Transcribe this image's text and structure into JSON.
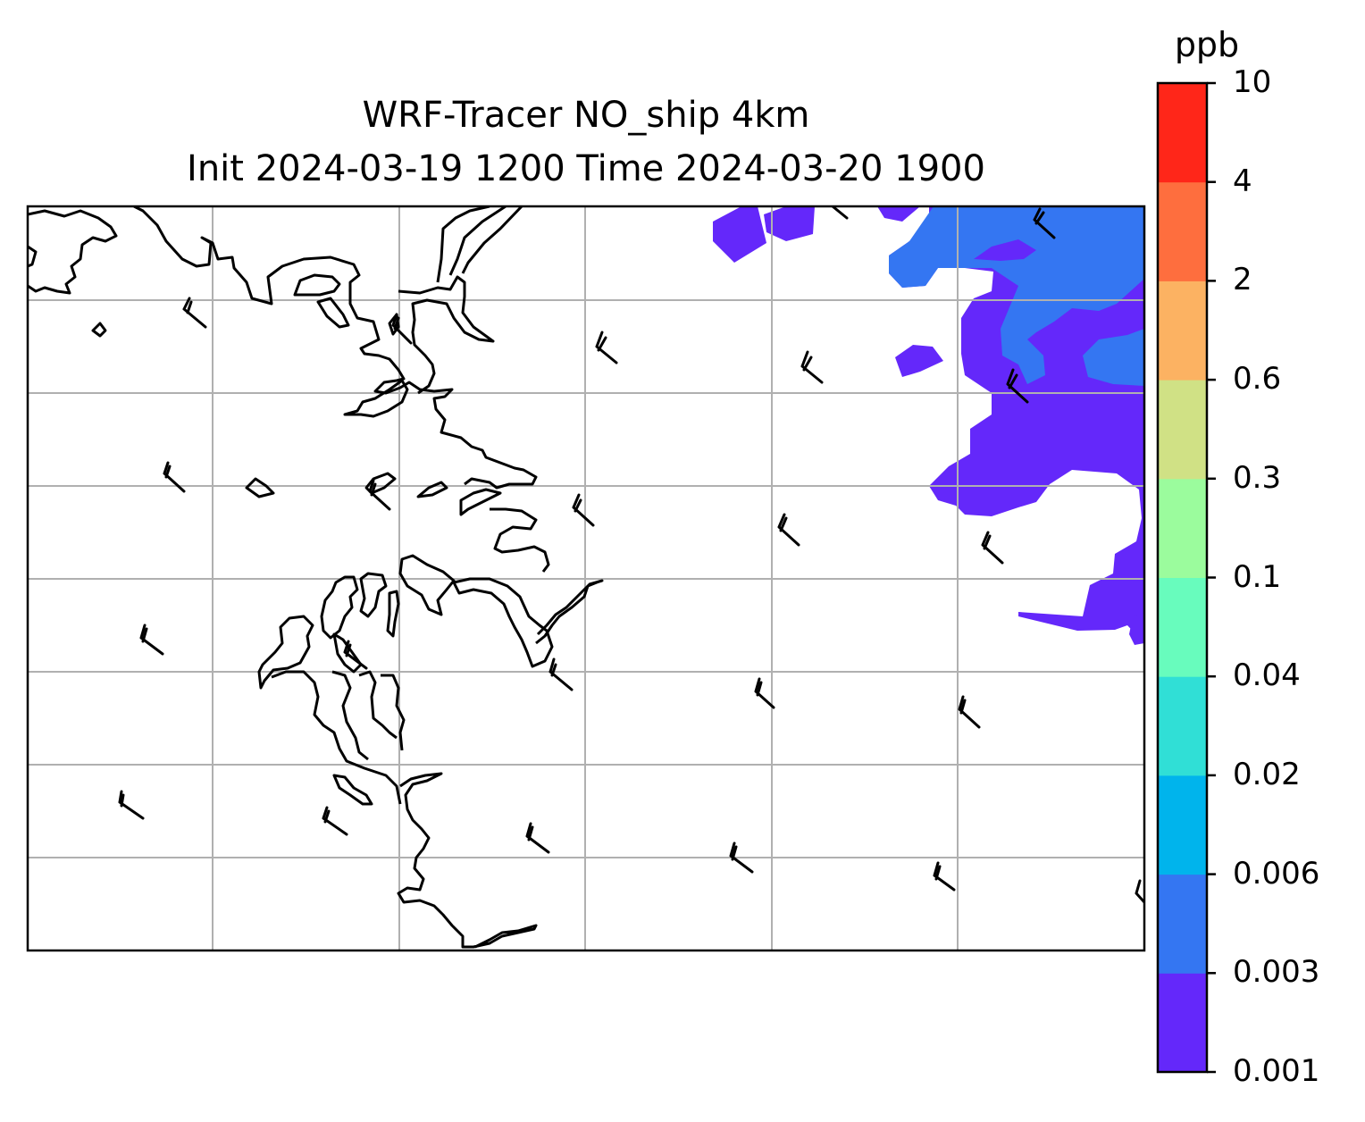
{
  "title": {
    "line1": "WRF-Tracer NO_ship 4km",
    "line2": "Init 2024-03-19 1200 Time 2024-03-20 1900"
  },
  "colorbar": {
    "unit": "ppb",
    "levels": [
      "0.001",
      "0.003",
      "0.006",
      "0.02",
      "0.04",
      "0.1",
      "0.3",
      "0.6",
      "2",
      "4",
      "10"
    ],
    "colors": [
      "#6428fa",
      "#3476f2",
      "#00b4ec",
      "#30dfd6",
      "#68fcbd",
      "#9bfc9d",
      "#d0e185",
      "#fcb262",
      "#fe6e3e",
      "#ff2619"
    ]
  },
  "map": {
    "gridlines": true,
    "coastline_color": "#000000",
    "gridline_color": "#b0b0b0",
    "wind_barb_color": "#000000"
  }
}
